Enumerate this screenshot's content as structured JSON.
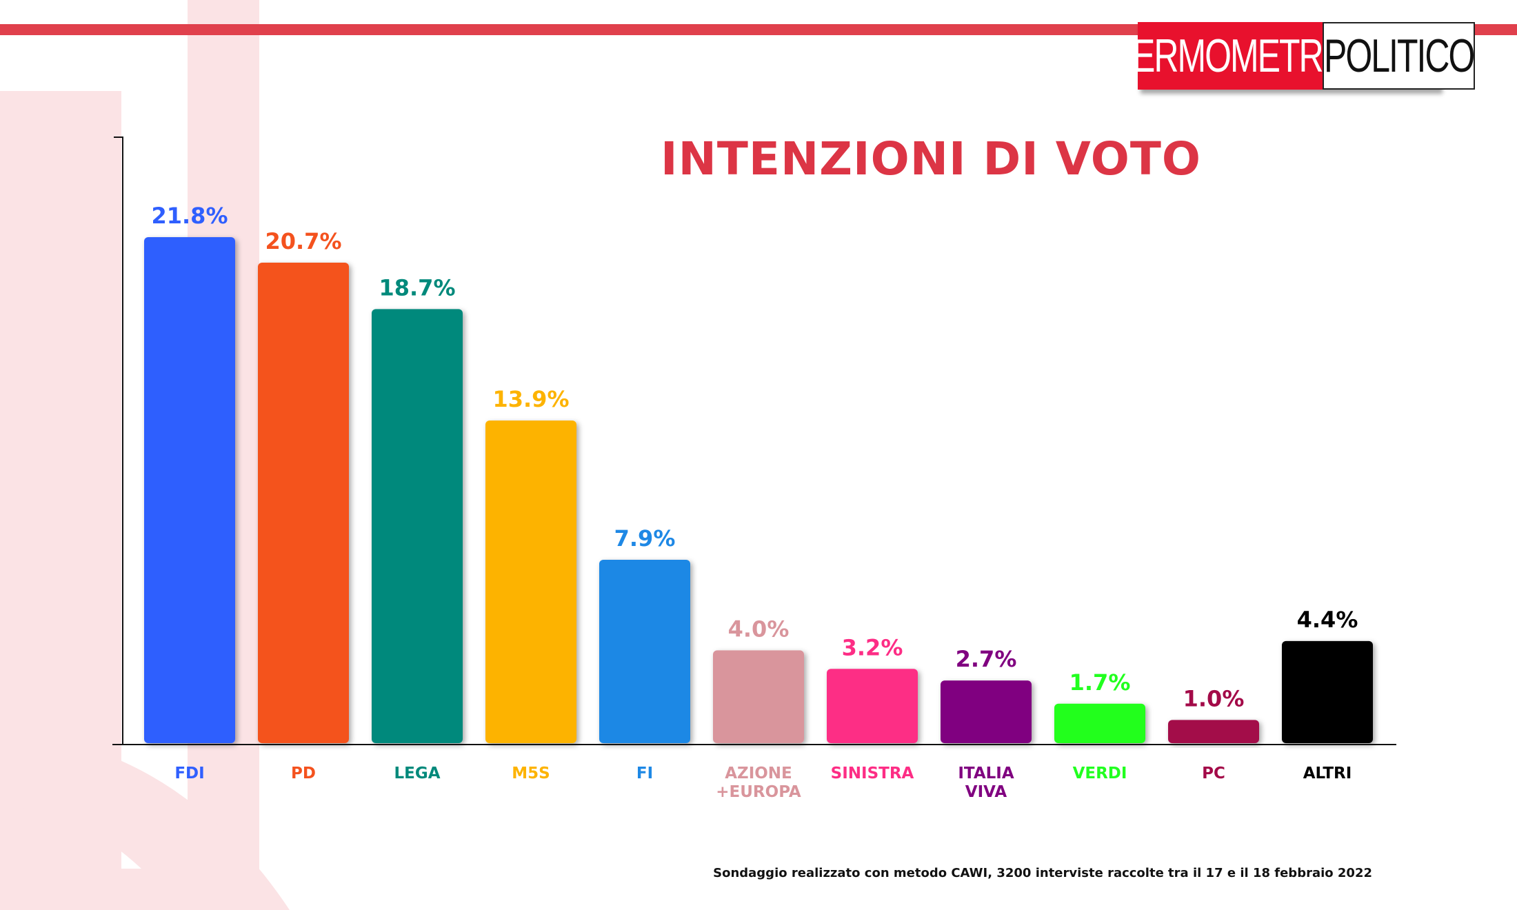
{
  "header": {
    "logo_left": "TERMOMETRO",
    "logo_right": "POLITICO"
  },
  "colors": {
    "accent": "#e0404c",
    "logo_red": "#e8112d",
    "title": "#dc3545"
  },
  "chart_data": {
    "type": "bar",
    "title": "INTENZIONI DI VOTO",
    "xlabel": "",
    "ylabel": "",
    "ylim": [
      0,
      24
    ],
    "grid": false,
    "categories": [
      {
        "lines": [
          "FDI"
        ],
        "value": 21.8,
        "value_label": "21.8%",
        "color": "#2f5ffe"
      },
      {
        "lines": [
          "PD"
        ],
        "value": 20.7,
        "value_label": "20.7%",
        "color": "#f4521e"
      },
      {
        "lines": [
          "LEGA"
        ],
        "value": 18.7,
        "value_label": "18.7%",
        "color": "#00897b"
      },
      {
        "lines": [
          "M5S"
        ],
        "value": 13.9,
        "value_label": "13.9%",
        "color": "#fdb300"
      },
      {
        "lines": [
          "FI"
        ],
        "value": 7.9,
        "value_label": "7.9%",
        "color": "#1e88e5"
      },
      {
        "lines": [
          "AZIONE",
          "+EUROPA"
        ],
        "value": 4.0,
        "value_label": "4.0%",
        "color": "#d9959c"
      },
      {
        "lines": [
          "SINISTRA"
        ],
        "value": 3.2,
        "value_label": "3.2%",
        "color": "#fd2d85"
      },
      {
        "lines": [
          "ITALIA",
          "VIVA"
        ],
        "value": 2.7,
        "value_label": "2.7%",
        "color": "#800080"
      },
      {
        "lines": [
          "VERDI"
        ],
        "value": 1.7,
        "value_label": "1.7%",
        "color": "#21ff1f"
      },
      {
        "lines": [
          "PC"
        ],
        "value": 1.0,
        "value_label": "1.0%",
        "color": "#a30a48"
      },
      {
        "lines": [
          "ALTRI"
        ],
        "value": 4.4,
        "value_label": "4.4%",
        "color": "#000000"
      }
    ]
  },
  "footnote": "Sondaggio realizzato con metodo CAWI, 3200 interviste raccolte tra il 17 e il 18 febbraio 2022"
}
